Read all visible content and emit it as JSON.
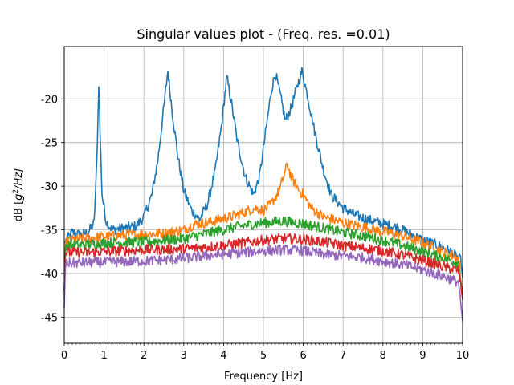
{
  "chart_data": {
    "type": "line",
    "title": "Singular values plot - (Freq. res. =0.01)",
    "xlabel": "Frequency [Hz]",
    "ylabel_prefix": "dB [",
    "ylabel_g": "g",
    "ylabel_sup": "2",
    "ylabel_suffix": "/Hz]",
    "xlim": [
      0,
      10
    ],
    "ylim": [
      -48,
      -14
    ],
    "xticks": [
      0,
      1,
      2,
      3,
      4,
      5,
      6,
      7,
      8,
      9,
      10
    ],
    "yticks": [
      -45,
      -40,
      -35,
      -30,
      -25,
      -20
    ],
    "grid": true,
    "series": [
      {
        "color": "#1f77b4",
        "points": [
          [
            0,
            -36.5
          ],
          [
            0.2,
            -35.3
          ],
          [
            0.4,
            -35.6
          ],
          [
            0.6,
            -35.3
          ],
          [
            0.75,
            -34.2
          ],
          [
            0.82,
            -27
          ],
          [
            0.87,
            -17.5
          ],
          [
            0.9,
            -24
          ],
          [
            0.95,
            -31
          ],
          [
            1.05,
            -34
          ],
          [
            1.2,
            -35
          ],
          [
            1.5,
            -34.8
          ],
          [
            1.8,
            -34.6
          ],
          [
            2.0,
            -33.5
          ],
          [
            2.2,
            -31
          ],
          [
            2.35,
            -27
          ],
          [
            2.5,
            -21
          ],
          [
            2.6,
            -16.8
          ],
          [
            2.7,
            -21
          ],
          [
            2.85,
            -26.5
          ],
          [
            3.0,
            -30.5
          ],
          [
            3.2,
            -32.8
          ],
          [
            3.4,
            -33.8
          ],
          [
            3.6,
            -32
          ],
          [
            3.8,
            -28
          ],
          [
            3.95,
            -23
          ],
          [
            4.08,
            -17.5
          ],
          [
            4.2,
            -20.5
          ],
          [
            4.35,
            -25
          ],
          [
            4.55,
            -29
          ],
          [
            4.75,
            -31
          ],
          [
            4.9,
            -29
          ],
          [
            5.05,
            -24
          ],
          [
            5.2,
            -19
          ],
          [
            5.3,
            -17
          ],
          [
            5.42,
            -19.5
          ],
          [
            5.55,
            -22.5
          ],
          [
            5.7,
            -21
          ],
          [
            5.85,
            -18.5
          ],
          [
            5.97,
            -16.8
          ],
          [
            6.1,
            -19.5
          ],
          [
            6.3,
            -24
          ],
          [
            6.5,
            -28
          ],
          [
            6.7,
            -31
          ],
          [
            7.0,
            -32.5
          ],
          [
            7.3,
            -33.3
          ],
          [
            7.6,
            -33.8
          ],
          [
            8.0,
            -34.3
          ],
          [
            8.4,
            -34.8
          ],
          [
            8.7,
            -35.5
          ],
          [
            9.0,
            -36.2
          ],
          [
            9.4,
            -36.8
          ],
          [
            9.7,
            -37.5
          ],
          [
            9.95,
            -38.5
          ],
          [
            10,
            -40.5
          ]
        ]
      },
      {
        "color": "#ff7f0e",
        "points": [
          [
            0,
            -43
          ],
          [
            0.03,
            -36.3
          ],
          [
            0.5,
            -36
          ],
          [
            1.0,
            -35.8
          ],
          [
            1.5,
            -35.6
          ],
          [
            2.0,
            -35.5
          ],
          [
            2.5,
            -35.4
          ],
          [
            3.0,
            -35
          ],
          [
            3.3,
            -34.3
          ],
          [
            3.6,
            -34.2
          ],
          [
            3.9,
            -33.8
          ],
          [
            4.2,
            -33.5
          ],
          [
            4.5,
            -33
          ],
          [
            4.8,
            -32.5
          ],
          [
            5.0,
            -32.8
          ],
          [
            5.2,
            -32
          ],
          [
            5.4,
            -30.5
          ],
          [
            5.5,
            -29
          ],
          [
            5.6,
            -27.5
          ],
          [
            5.7,
            -29
          ],
          [
            5.9,
            -30.5
          ],
          [
            6.0,
            -31
          ],
          [
            6.2,
            -32.5
          ],
          [
            6.5,
            -33.5
          ],
          [
            7.0,
            -34.2
          ],
          [
            7.5,
            -34.7
          ],
          [
            8.0,
            -35.2
          ],
          [
            8.5,
            -35.7
          ],
          [
            9.0,
            -36.5
          ],
          [
            9.5,
            -37.5
          ],
          [
            9.9,
            -38.3
          ],
          [
            10,
            -43
          ]
        ]
      },
      {
        "color": "#2ca02c",
        "points": [
          [
            0,
            -42
          ],
          [
            0.03,
            -36.8
          ],
          [
            0.5,
            -36.7
          ],
          [
            1.0,
            -36.5
          ],
          [
            2.0,
            -36.4
          ],
          [
            3.0,
            -36
          ],
          [
            3.5,
            -35.5
          ],
          [
            4.0,
            -35
          ],
          [
            4.5,
            -34.5
          ],
          [
            5.0,
            -34.2
          ],
          [
            5.5,
            -34
          ],
          [
            6.0,
            -34.3
          ],
          [
            6.5,
            -34.8
          ],
          [
            7.0,
            -35.3
          ],
          [
            7.5,
            -35.7
          ],
          [
            8.0,
            -36.2
          ],
          [
            8.5,
            -36.8
          ],
          [
            9.0,
            -37.5
          ],
          [
            9.5,
            -38.2
          ],
          [
            9.9,
            -38.8
          ],
          [
            10,
            -42.5
          ]
        ]
      },
      {
        "color": "#d62728",
        "points": [
          [
            0,
            -42
          ],
          [
            0.03,
            -37.6
          ],
          [
            0.5,
            -37.6
          ],
          [
            1.0,
            -37.5
          ],
          [
            2.0,
            -37.3
          ],
          [
            3.0,
            -37.2
          ],
          [
            3.5,
            -37
          ],
          [
            4.0,
            -36.8
          ],
          [
            4.5,
            -36.5
          ],
          [
            5.0,
            -36.2
          ],
          [
            5.5,
            -36
          ],
          [
            6.0,
            -36.1
          ],
          [
            6.5,
            -36.4
          ],
          [
            7.0,
            -36.8
          ],
          [
            7.5,
            -37.1
          ],
          [
            8.0,
            -37.4
          ],
          [
            8.5,
            -37.9
          ],
          [
            9.0,
            -38.5
          ],
          [
            9.5,
            -39.2
          ],
          [
            9.9,
            -39.7
          ],
          [
            10,
            -43
          ]
        ]
      },
      {
        "color": "#9467bd",
        "points": [
          [
            0,
            -44
          ],
          [
            0.03,
            -38.8
          ],
          [
            0.5,
            -38.8
          ],
          [
            1.0,
            -38.7
          ],
          [
            2.0,
            -38.6
          ],
          [
            3.0,
            -38.3
          ],
          [
            3.5,
            -38
          ],
          [
            4.0,
            -37.8
          ],
          [
            4.5,
            -37.6
          ],
          [
            5.0,
            -37.4
          ],
          [
            5.5,
            -37.3
          ],
          [
            6.0,
            -37.4
          ],
          [
            6.5,
            -37.8
          ],
          [
            7.0,
            -38
          ],
          [
            7.5,
            -38.2
          ],
          [
            8.0,
            -38.6
          ],
          [
            8.5,
            -39
          ],
          [
            9.0,
            -39.6
          ],
          [
            9.5,
            -40.3
          ],
          [
            9.9,
            -41
          ],
          [
            10,
            -45.5
          ]
        ]
      }
    ]
  }
}
